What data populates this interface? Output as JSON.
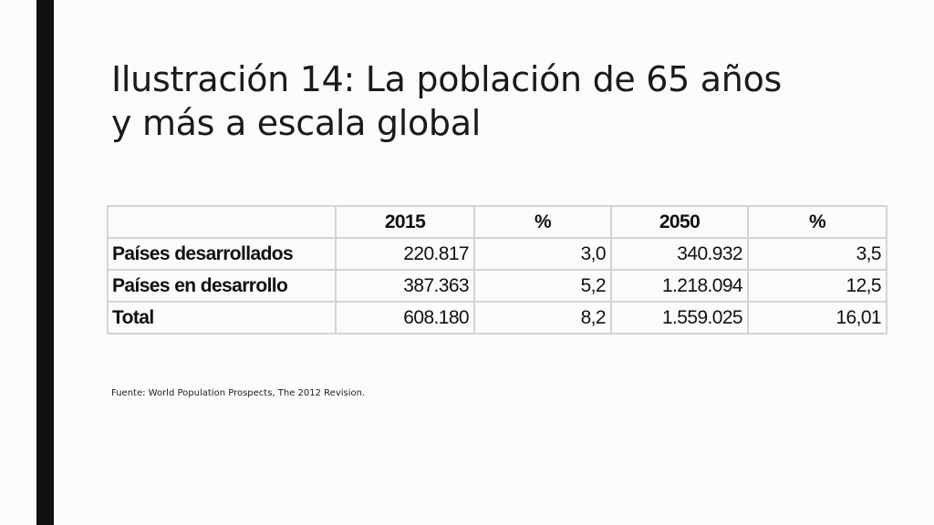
{
  "slide": {
    "title_line1": "Ilustración 14: La población de 65 años",
    "title_line2": "y más a escala global",
    "source": "Fuente: World Population Prospects, The 2012 Revision."
  },
  "table": {
    "headers": [
      "",
      "2015",
      "%",
      "2050",
      "%"
    ],
    "rows": [
      {
        "label": "Países desarrollados",
        "cells": [
          "220.817",
          "3,0",
          "340.932",
          "3,5"
        ]
      },
      {
        "label": "Países en desarrollo",
        "cells": [
          "387.363",
          "5,2",
          "1.218.094",
          "12,5"
        ]
      },
      {
        "label": "Total",
        "cells": [
          "608.180",
          "8,2",
          "1.559.025",
          "16,01"
        ]
      }
    ]
  },
  "colors": {
    "accent_bar": "#111111",
    "background": "#fbfbfa",
    "table_border": "#d4d4d4"
  }
}
